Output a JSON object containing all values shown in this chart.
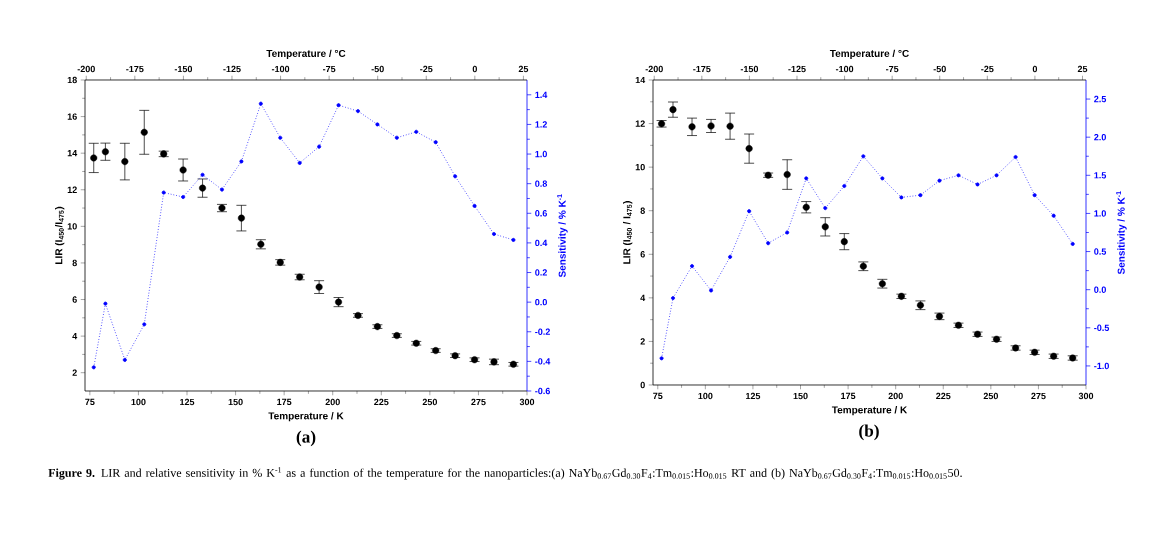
{
  "chart_data": [
    {
      "type": "scatter",
      "xlabel": "Temperature / K",
      "ylabel": "LIR (I$_{450}$/I$_{475}$)",
      "y2label": "Sensitivity / % K$^{-1}$",
      "x2label": "Temperature / °C",
      "xlim": [
        72.5,
        300
      ],
      "xticks": [
        75,
        100,
        125,
        150,
        175,
        200,
        225,
        250,
        275,
        300
      ],
      "x2lim": [
        -200.65,
        26.85
      ],
      "x2ticks": [
        -200,
        -175,
        -150,
        -125,
        -100,
        -75,
        -50,
        -25,
        0,
        25
      ],
      "ylim": [
        1,
        18
      ],
      "yticks": [
        2,
        4,
        6,
        8,
        10,
        12,
        14,
        16,
        18
      ],
      "y2lim": [
        -0.6,
        1.5
      ],
      "y2ticks": [
        -0.6,
        -0.4,
        -0.2,
        {
          "value": 0.0,
          "label": "0.0"
        },
        0.2,
        0.4,
        0.6,
        0.8,
        {
          "value": 1.0,
          "label": "1.0"
        },
        1.2,
        1.4
      ],
      "marker": "circle",
      "x": [
        77,
        83,
        93,
        103,
        113,
        123,
        133,
        143,
        153,
        163,
        173,
        183,
        193,
        203,
        213,
        223,
        233,
        243,
        253,
        263,
        273,
        283,
        293
      ],
      "series": [
        {
          "type": "scatter",
          "color": "#000000",
          "values": [
            13.74,
            14.08,
            13.54,
            15.14,
            13.96,
            13.08,
            12.09,
            11.0,
            10.45,
            9.02,
            8.03,
            7.23,
            6.68,
            5.86,
            5.13,
            4.52,
            4.03,
            3.61,
            3.21,
            2.93,
            2.71,
            2.59,
            2.46
          ],
          "errors": [
            0.8,
            0.47,
            1.0,
            1.2,
            0.15,
            0.6,
            0.5,
            0.2,
            0.7,
            0.25,
            0.15,
            0.15,
            0.35,
            0.25,
            0.1,
            0.1,
            0.1,
            0.1,
            0.1,
            0.1,
            0.1,
            0.15,
            0.1
          ]
        },
        {
          "type": "line",
          "axis": "y2",
          "color": "#0000ff",
          "line_style": "dotted",
          "values": [
            -0.44,
            -0.01,
            -0.39,
            -0.15,
            0.74,
            0.71,
            0.86,
            0.76,
            0.95,
            1.34,
            1.11,
            0.94,
            1.05,
            1.33,
            1.29,
            1.2,
            1.11,
            1.15,
            1.08,
            0.85,
            0.65,
            0.46,
            0.42
          ]
        }
      ],
      "annotations": [
        "(a)",
        "**Figure 9.** LIR and relative sensitivity in % K$^{-1}$ as a function of the temperature for the nanoparticles:(a) NaYb$_{0.67}$Gd$_{0.30}$F$_{4}$:Tm$_{0.015}$:Ho$_{0.015}$ RT and (b) NaYb$_{0.67}$Gd$_{0.30}$F$_{4}$:Tm$_{0.015}$:Ho$_{0.015}$50."
      ]
    },
    {
      "type": "scatter",
      "xlabel": "Temperature / K",
      "ylabel": "LIR (I$_{450}$ / I$_{475}$)",
      "y2label": "Sensitivity / % K$^{-1}$",
      "x2label": "Temperature / °C",
      "xlim": [
        72.5,
        300
      ],
      "xticks": [
        75,
        100,
        125,
        150,
        175,
        200,
        225,
        250,
        275,
        300
      ],
      "x2lim": [
        -200.65,
        26.85
      ],
      "x2ticks": [
        -200,
        -175,
        -150,
        -125,
        -100,
        -75,
        -50,
        -25,
        0,
        25
      ],
      "ylim": [
        0,
        14
      ],
      "yticks": [
        0,
        2,
        4,
        6,
        8,
        10,
        12,
        14
      ],
      "y2lim": [
        -1.25,
        2.75
      ],
      "y2ticks": [
        {
          "value": -1.0,
          "label": "-1.0"
        },
        -0.5,
        {
          "value": 0.0,
          "label": "0.0"
        },
        0.5,
        {
          "value": 1.0,
          "label": "1.0"
        },
        1.5,
        {
          "value": 2.0,
          "label": "2.0"
        },
        2.5
      ],
      "marker": "circle",
      "x": [
        77,
        83,
        93,
        103,
        113,
        123,
        133,
        143,
        153,
        163,
        173,
        183,
        193,
        203,
        213,
        223,
        233,
        243,
        253,
        263,
        273,
        283,
        293
      ],
      "series": [
        {
          "type": "scatter",
          "color": "#000000",
          "values": [
            11.99,
            12.64,
            11.85,
            11.89,
            11.88,
            10.85,
            9.63,
            9.66,
            8.16,
            7.26,
            6.58,
            5.45,
            4.65,
            4.07,
            3.66,
            3.15,
            2.74,
            2.33,
            2.1,
            1.7,
            1.5,
            1.32,
            1.24
          ],
          "errors": [
            0.15,
            0.35,
            0.4,
            0.3,
            0.6,
            0.67,
            0.1,
            0.68,
            0.26,
            0.42,
            0.37,
            0.2,
            0.2,
            0.1,
            0.2,
            0.15,
            0.1,
            0.1,
            0.1,
            0.1,
            0.1,
            0.1,
            0.1
          ]
        },
        {
          "type": "line",
          "axis": "y2",
          "color": "#0000ff",
          "line_style": "dotted",
          "values": [
            -0.9,
            -0.11,
            0.31,
            -0.01,
            0.43,
            1.03,
            0.61,
            0.75,
            1.46,
            1.07,
            1.36,
            1.75,
            1.46,
            1.21,
            1.24,
            1.43,
            1.5,
            1.38,
            1.5,
            1.74,
            1.24,
            0.97,
            0.6
          ]
        }
      ],
      "annotations": [
        "(b)"
      ]
    }
  ]
}
